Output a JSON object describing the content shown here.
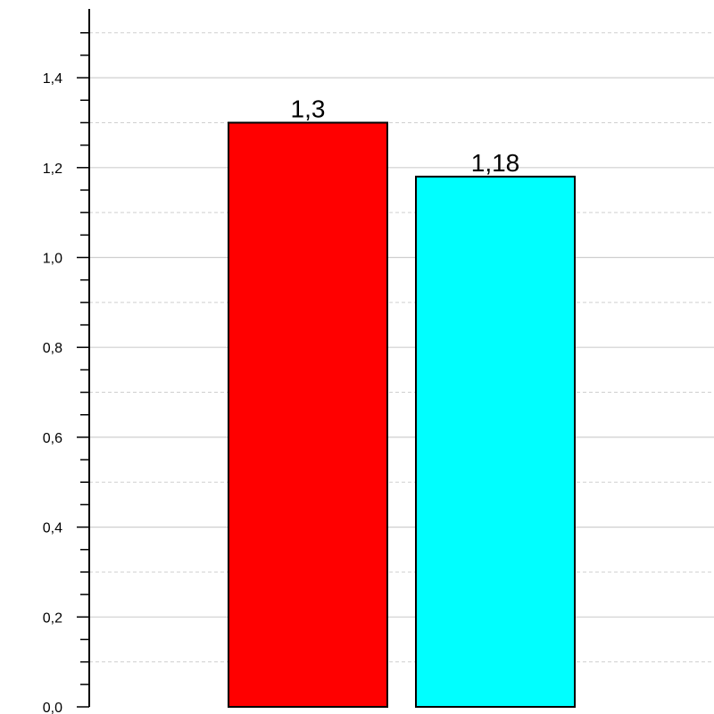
{
  "chart_data": {
    "type": "bar",
    "title": "",
    "xlabel": "",
    "ylabel": "",
    "ylim": [
      0,
      1.5
    ],
    "y_ticks_major": [
      {
        "value": 0.0,
        "label": "0,0"
      },
      {
        "value": 0.2,
        "label": "0,2"
      },
      {
        "value": 0.4,
        "label": "0,4"
      },
      {
        "value": 0.6,
        "label": "0,6"
      },
      {
        "value": 0.8,
        "label": "0,8"
      },
      {
        "value": 1.0,
        "label": "1,0"
      },
      {
        "value": 1.2,
        "label": "1,2"
      },
      {
        "value": 1.4,
        "label": "1,4"
      }
    ],
    "y_minor_step": 0.05,
    "grid_major": true,
    "grid_minor_dashed": true,
    "bars": [
      {
        "value": 1.3,
        "label": "1,3",
        "color": "#ff0000"
      },
      {
        "value": 1.18,
        "label": "1,18",
        "color": "#00ffff"
      }
    ],
    "colors": {
      "grid_major": "#cfcfcf",
      "grid_minor": "#cfcfcf",
      "axis": "#000000",
      "bar_edge": "#000000"
    }
  }
}
